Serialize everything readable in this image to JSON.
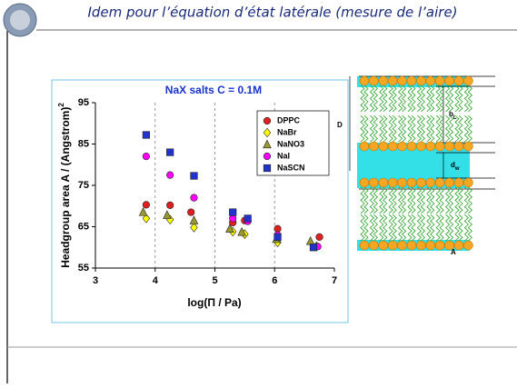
{
  "slide_title": "Idem pour l’équation d’état latérale (mesure de l’aire)",
  "chart_data": {
    "type": "scatter",
    "title": "NaX salts C = 0.1M",
    "x_label": "log(Π / Pa)",
    "y_label": "Headgroup area A / (Angstrom)",
    "y_label_sup": "2",
    "xlim": [
      3,
      7
    ],
    "xticks": [
      3,
      4,
      5,
      6,
      7
    ],
    "ylim": [
      55,
      95
    ],
    "yticks": [
      55,
      65,
      75,
      85,
      95
    ],
    "grid": true,
    "legend": "upper right",
    "series": [
      {
        "name": "DPPC",
        "color": "#e02020",
        "marker": "circle",
        "x": [
          3.85,
          4.25,
          4.6,
          5.3,
          5.5,
          6.05,
          6.75
        ],
        "values": [
          70.3,
          70.2,
          68.5,
          66,
          66.5,
          64.5,
          62.5
        ]
      },
      {
        "name": "NaBr",
        "color": "#ffff00",
        "marker": "diamond",
        "x": [
          3.85,
          4.25,
          4.65,
          5.3,
          5.5,
          6.05,
          6.7
        ],
        "values": [
          67,
          66.7,
          64.8,
          63.8,
          63.2,
          61.2,
          60.3
        ]
      },
      {
        "name": "NaNO3",
        "color": "#999933",
        "marker": "triangle",
        "x": [
          3.8,
          4.2,
          4.65,
          5.25,
          5.45,
          6.03,
          6.6
        ],
        "values": [
          68.5,
          67.8,
          66.5,
          64.5,
          63.7,
          62,
          61.5
        ]
      },
      {
        "name": "NaI",
        "color": "#ff00ff",
        "marker": "circle",
        "x": [
          3.85,
          4.25,
          4.65,
          5.3,
          5.55,
          6.05,
          6.72
        ],
        "values": [
          82,
          77.5,
          72,
          67,
          66.3,
          63,
          60.2
        ]
      },
      {
        "name": "NaSCN",
        "color": "#2233cc",
        "marker": "square",
        "x": [
          3.85,
          4.25,
          4.65,
          5.3,
          5.55,
          6.05,
          6.65
        ],
        "values": [
          87.2,
          83,
          77.3,
          68.5,
          67,
          62.5,
          60
        ]
      }
    ]
  },
  "diagram": {
    "D": "D",
    "bL": {
      "text": "b",
      "sub": "L"
    },
    "dw": {
      "text": "d",
      "sub": "w"
    },
    "A": "A"
  }
}
